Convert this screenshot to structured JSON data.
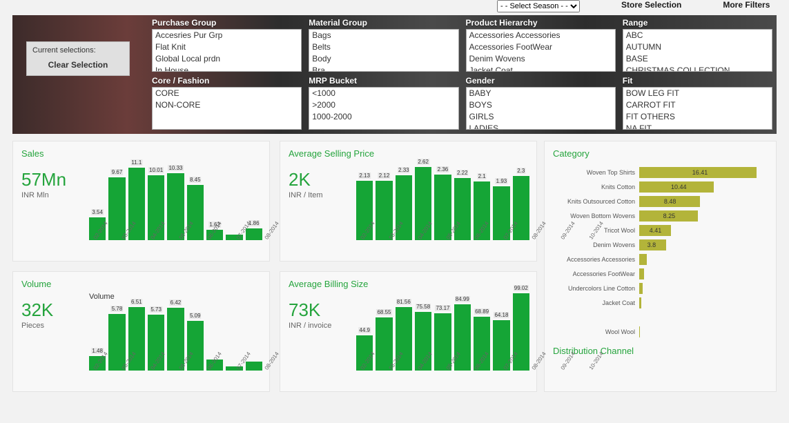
{
  "topbar": {
    "season_placeholder": "- - Select Season - -",
    "store_selection": "Store Selection",
    "more_filters": "More Filters"
  },
  "current_selections": {
    "label": "Current selections:",
    "clear": "Clear Selection"
  },
  "filters": [
    {
      "label": "Purchase Group",
      "options": [
        "Accesries Pur Grp",
        "Flat Knit",
        "Global Local prdn",
        "In House"
      ]
    },
    {
      "label": "Material Group",
      "options": [
        "Bags",
        "Belts",
        "Body",
        "Bra"
      ]
    },
    {
      "label": "Product Hierarchy",
      "options": [
        "Accessories Accessories",
        "Accessories FootWear",
        "Denim Wovens",
        "Jacket Coat"
      ]
    },
    {
      "label": "Range",
      "options": [
        "ABC",
        "AUTUMN",
        "BASE",
        "CHRISTMAS COLLECTION"
      ]
    },
    {
      "label": "Core / Fashion",
      "options": [
        "CORE",
        "NON-CORE"
      ]
    },
    {
      "label": "MRP Bucket",
      "options": [
        "<1000",
        ">2000",
        "1000-2000"
      ]
    },
    {
      "label": "Gender",
      "options": [
        "BABY",
        "BOYS",
        "GIRLS",
        "LADIES"
      ]
    },
    {
      "label": "Fit",
      "options": [
        "BOW LEG FIT",
        "CARROT FIT",
        "FIT OTHERS",
        "NA FIT"
      ]
    }
  ],
  "x_categories": [
    "02-2014",
    "03-2014",
    "04-2014",
    "05-2014",
    "06-2014",
    "07-2014",
    "08-2014",
    "09-2014",
    "10-2014"
  ],
  "colors": {
    "bar_green": "#15a536",
    "accent_text": "#25a43d",
    "category_bar": "#b3b43a",
    "card_bg": "#f8f8f8"
  },
  "sales": {
    "title": "Sales",
    "kpi": "57Mn",
    "unit": "INR Mln",
    "values": [
      3.54,
      9.67,
      11.1,
      10.01,
      10.33,
      8.45,
      1.62,
      0.8,
      1.86
    ],
    "labels": [
      "3.54",
      "9.67",
      "11.1",
      "10.01",
      "10.33",
      "8.45",
      "1.62",
      "",
      "1.86"
    ],
    "ymax": 12
  },
  "asp": {
    "title": "Average Selling Price",
    "kpi": "2K",
    "unit": "INR / Item",
    "values": [
      2.13,
      2.12,
      2.33,
      2.62,
      2.36,
      2.22,
      2.1,
      1.93,
      2.3
    ],
    "labels": [
      "2.13",
      "2.12",
      "2.33",
      "2.62",
      "2.36",
      "2.22",
      "2.1",
      "1.93",
      "2.3"
    ],
    "ymax": 2.8
  },
  "volume": {
    "title": "Volume",
    "subtitle": "Volume",
    "kpi": "32K",
    "unit": "Pieces",
    "values": [
      1.48,
      5.78,
      6.51,
      5.73,
      6.42,
      5.09,
      1.1,
      0.4,
      0.9
    ],
    "labels": [
      "1.48",
      "5.78",
      "6.51",
      "5.73",
      "6.42",
      "5.09",
      "",
      "",
      ""
    ],
    "ymax": 7
  },
  "abs": {
    "title": "Average Billing Size",
    "kpi": "73K",
    "unit": "INR / invoice",
    "values": [
      44.9,
      68.55,
      81.56,
      75.58,
      73.17,
      84.99,
      68.89,
      64.18,
      99.02
    ],
    "labels": [
      "44.9",
      "68.55",
      "81.56",
      "75.58",
      "73.17",
      "84.99",
      "68.89",
      "64.18",
      "99.02"
    ],
    "ymax": 100
  },
  "category": {
    "title": "Category",
    "max": 18,
    "items": [
      {
        "label": "Woven Top Shirts",
        "value": 16.41,
        "show": true
      },
      {
        "label": "Knits Cotton",
        "value": 10.44,
        "show": true
      },
      {
        "label": "Knits Outsourced Cotton",
        "value": 8.48,
        "show": true
      },
      {
        "label": "Woven Bottom Wovens",
        "value": 8.25,
        "show": true
      },
      {
        "label": "Tricot Wool",
        "value": 4.41,
        "show": true
      },
      {
        "label": "Denim Wovens",
        "value": 3.8,
        "show": true
      },
      {
        "label": "Accessories Accessories",
        "value": 1.1,
        "show": false
      },
      {
        "label": "Accessories FootWear",
        "value": 0.7,
        "show": false
      },
      {
        "label": "Undercolors Line Cotton",
        "value": 0.5,
        "show": false
      },
      {
        "label": "Jacket Coat",
        "value": 0.3,
        "show": false
      },
      {
        "label": "",
        "value": 0,
        "show": false
      },
      {
        "label": "Wool Wool",
        "value": 0.05,
        "show": false
      }
    ]
  },
  "distribution_title": "Distribution Channel"
}
